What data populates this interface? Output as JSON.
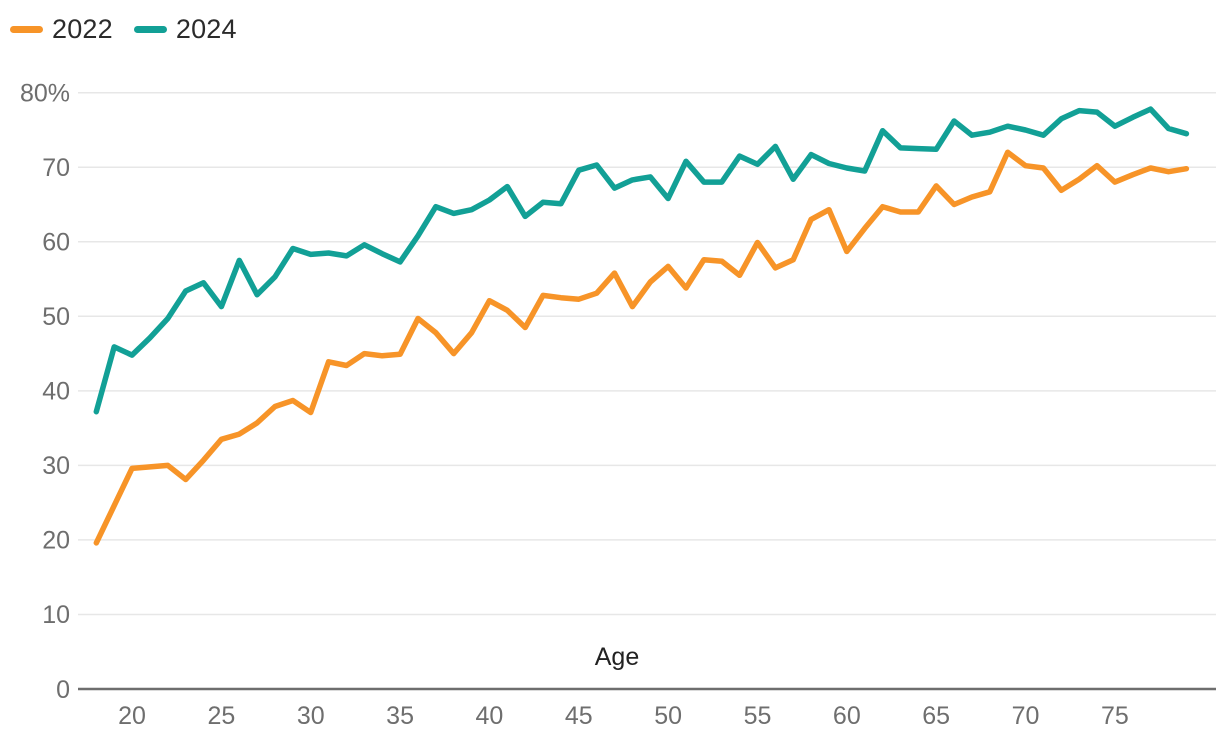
{
  "legend": {
    "items": [
      {
        "label": "2022",
        "color": "#F79428"
      },
      {
        "label": "2024",
        "color": "#12A096"
      }
    ]
  },
  "chart_data": {
    "type": "line",
    "title": "",
    "xlabel": "Age",
    "ylabel": "",
    "ylim": [
      0,
      80
    ],
    "grid": "horizontal",
    "legend_position": "top-left",
    "yticks": [
      0,
      10,
      20,
      30,
      40,
      50,
      60,
      70,
      80
    ],
    "ytick_labels": [
      "0",
      "10",
      "20",
      "30",
      "40",
      "50",
      "60",
      "70",
      "80%"
    ],
    "xticks": [
      20,
      25,
      30,
      35,
      40,
      45,
      50,
      55,
      60,
      65,
      70,
      75
    ],
    "x": [
      18,
      19,
      20,
      21,
      22,
      23,
      24,
      25,
      26,
      27,
      28,
      29,
      30,
      31,
      32,
      33,
      34,
      35,
      36,
      37,
      38,
      39,
      40,
      41,
      42,
      43,
      44,
      45,
      46,
      47,
      48,
      49,
      50,
      51,
      52,
      53,
      54,
      55,
      56,
      57,
      58,
      59,
      60,
      61,
      62,
      63,
      64,
      65,
      66,
      67,
      68,
      69,
      70,
      71,
      72,
      73,
      74,
      75,
      76,
      77,
      78,
      79
    ],
    "series": [
      {
        "name": "2022",
        "color": "#F79428",
        "values": [
          19.6,
          24.6,
          29.6,
          29.8,
          30.0,
          28.1,
          30.7,
          33.5,
          34.2,
          35.7,
          37.9,
          38.7,
          37.1,
          43.9,
          43.4,
          45.0,
          44.7,
          44.9,
          49.7,
          47.8,
          45.0,
          47.8,
          52.1,
          50.8,
          48.5,
          52.8,
          52.5,
          52.3,
          53.1,
          55.8,
          51.3,
          54.6,
          56.7,
          53.8,
          57.6,
          57.4,
          55.5,
          59.9,
          56.5,
          57.6,
          63.0,
          64.3,
          58.7,
          61.8,
          64.7,
          64.0,
          64.0,
          67.5,
          65.0,
          66.0,
          66.7,
          72.0,
          70.2,
          69.9,
          66.9,
          68.4,
          70.2,
          68.0,
          69.0,
          69.9,
          69.4,
          69.8
        ]
      },
      {
        "name": "2024",
        "color": "#12A096",
        "values": [
          37.2,
          45.9,
          44.8,
          47.1,
          49.7,
          53.4,
          54.5,
          51.3,
          57.5,
          52.9,
          55.3,
          59.1,
          58.3,
          58.5,
          58.1,
          59.6,
          58.4,
          57.3,
          60.8,
          64.7,
          63.8,
          64.3,
          65.6,
          67.4,
          63.4,
          65.3,
          65.1,
          69.6,
          70.3,
          67.2,
          68.3,
          68.7,
          65.8,
          70.8,
          68.0,
          68.0,
          71.5,
          70.4,
          72.8,
          68.4,
          71.7,
          70.5,
          69.9,
          69.5,
          74.9,
          72.6,
          72.5,
          72.4,
          76.2,
          74.3,
          74.7,
          75.5,
          75.0,
          74.3,
          76.5,
          77.6,
          77.4,
          75.5,
          76.7,
          77.8,
          75.2,
          74.5
        ]
      }
    ]
  },
  "style": {
    "grid_color": "#e7e7e7",
    "axis_color": "#6e6e6e",
    "tick_label_color": "#6e6e6e"
  }
}
